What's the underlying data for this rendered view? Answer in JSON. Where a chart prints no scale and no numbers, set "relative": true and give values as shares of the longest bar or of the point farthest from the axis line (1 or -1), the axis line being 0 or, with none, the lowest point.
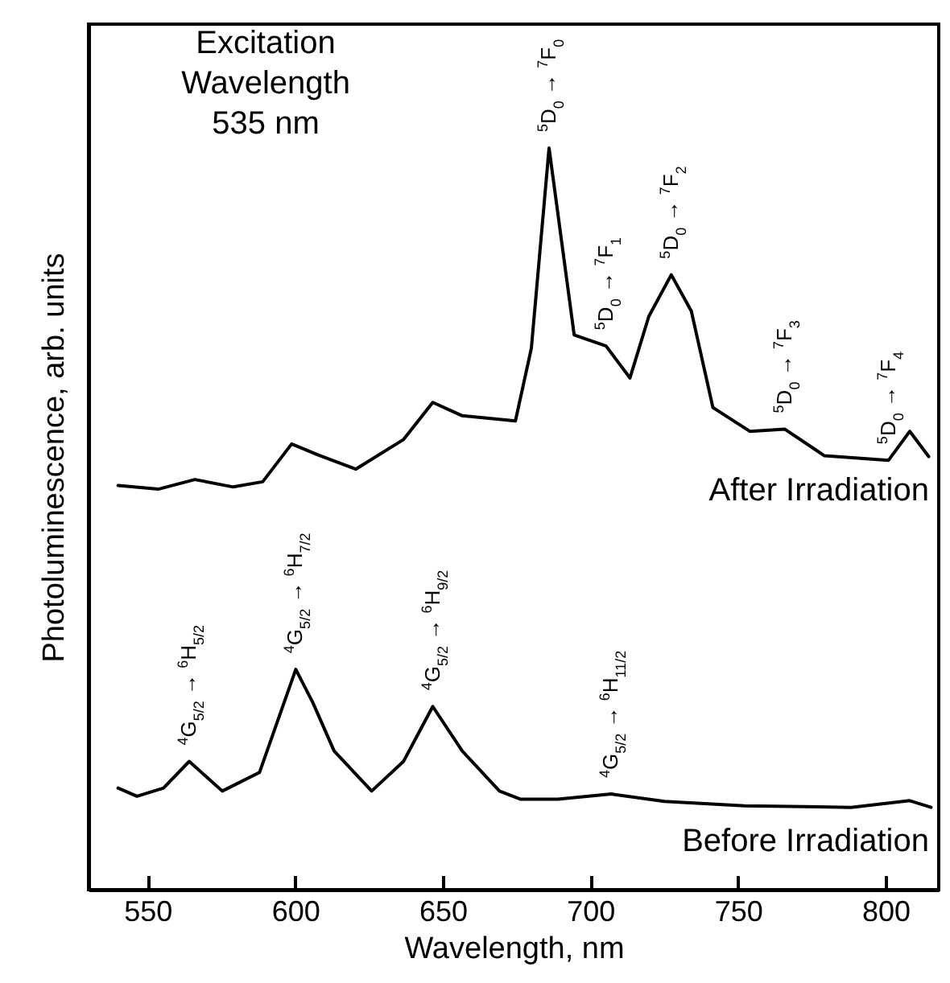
{
  "chart_data": {
    "type": "line",
    "relative": true,
    "xlabel": "Wavelength, nm",
    "ylabel": "Photoluminescence, arb. units",
    "xlim": [
      530,
      818
    ],
    "xticks": [
      550,
      600,
      650,
      700,
      750,
      800
    ],
    "grid": false,
    "legend": false,
    "marker": "none",
    "line_style": "solid",
    "series": [
      {
        "name": "After Irradiation",
        "color": "#000000",
        "x": [
          540,
          553.6,
          566,
          579,
          589,
          598.8,
          607.8,
          620.5,
          636.7,
          646.6,
          656.6,
          674.6,
          680,
          686,
          694.5,
          705.3,
          713.4,
          719.8,
          727.4,
          734.2,
          741.5,
          754,
          765.8,
          779.3,
          801,
          808.2,
          814.6
        ],
        "values": [
          0.545,
          0.54,
          0.553,
          0.543,
          0.55,
          0.601,
          0.586,
          0.567,
          0.607,
          0.657,
          0.639,
          0.632,
          0.73,
          1.0,
          0.748,
          0.733,
          0.69,
          0.773,
          0.829,
          0.78,
          0.65,
          0.618,
          0.621,
          0.585,
          0.579,
          0.618,
          0.584
        ]
      },
      {
        "name": "Before Irradiation",
        "color": "#000000",
        "x": [
          540,
          546.4,
          555.4,
          564.1,
          575.3,
          587.9,
          600.2,
          606,
          613.2,
          625.9,
          636.7,
          646.6,
          656.6,
          669.2,
          676.4,
          689,
          707.1,
          725.1,
          752.2,
          788.3,
          808.2,
          815.4
        ],
        "values": [
          0.137,
          0.126,
          0.137,
          0.173,
          0.133,
          0.158,
          0.297,
          0.252,
          0.187,
          0.133,
          0.173,
          0.247,
          0.187,
          0.133,
          0.122,
          0.122,
          0.129,
          0.119,
          0.113,
          0.111,
          0.12,
          0.111
        ]
      }
    ],
    "annotations": [
      "Excitation\nWavelength\n535 nm",
      {
        "text": "$^{5}$D$_{0}$ → $^{7}$F$_{0}$",
        "x": 686,
        "y": 1.0
      },
      {
        "text": "$^{5}$D$_{0}$ → $^{7}$F$_{1}$",
        "x": 705.3,
        "y": 0.733
      },
      {
        "text": "$^{5}$D$_{0}$ → $^{7}$F$_{2}$",
        "x": 727.4,
        "y": 0.829
      },
      {
        "text": "$^{5}$D$_{0}$ → $^{7}$F$_{3}$",
        "x": 765.8,
        "y": 0.621
      },
      {
        "text": "$^{5}$D$_{0}$ → $^{7}$F$_{4}$",
        "x": 801,
        "y": 0.579
      },
      {
        "text": "$^{4}$G$_{5/2}$ → $^{6}$H$_{5/2}$",
        "x": 564.1,
        "y": 0.173
      },
      {
        "text": "$^{4}$G$_{5/2}$ → $^{6}$H$_{7/2}$",
        "x": 600.2,
        "y": 0.297
      },
      {
        "text": "$^{4}$G$_{5/2}$ → $^{6}$H$_{9/2}$",
        "x": 646.6,
        "y": 0.247
      },
      {
        "text": "$^{4}$G$_{5/2}$ → $^{6}$H$_{11/2}$",
        "x": 707.1,
        "y": 0.129
      }
    ]
  }
}
